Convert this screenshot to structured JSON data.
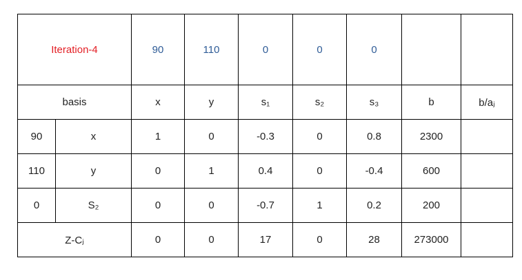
{
  "header": {
    "title": "Iteration-4",
    "values": [
      90,
      110,
      0,
      0,
      0
    ]
  },
  "columns": {
    "basis": "basis",
    "labels": [
      "x",
      "y",
      "s₁",
      "s₂",
      "s₃",
      "b",
      "b/aⱼ"
    ]
  },
  "rows": [
    {
      "cb": 90,
      "basis": "x",
      "values": [
        1,
        0,
        -0.3,
        0,
        0.8,
        2300
      ]
    },
    {
      "cb": 110,
      "basis": "y",
      "values": [
        0,
        1,
        0.4,
        0,
        -0.4,
        600
      ]
    },
    {
      "cb": 0,
      "basis": "S₂",
      "values": [
        0,
        0,
        -0.7,
        1,
        0.2,
        200
      ]
    }
  ],
  "z": {
    "label": "Z-Cⱼ",
    "values": [
      0,
      0,
      17,
      0,
      28,
      273000
    ]
  }
}
